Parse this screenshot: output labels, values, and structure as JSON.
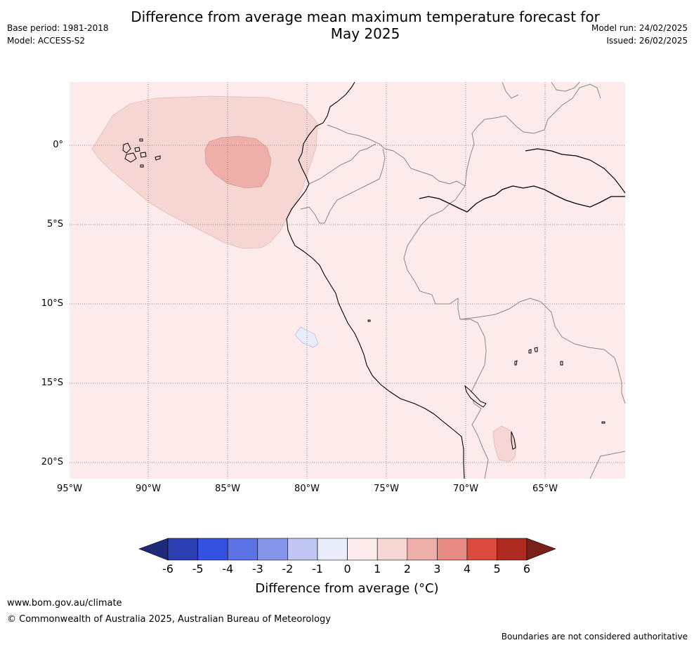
{
  "header": {
    "title_line1": "Difference from average mean maximum temperature forecast for",
    "title_line2": "May 2025",
    "base_period": "Base period: 1981-2018",
    "model": "Model: ACCESS-S2",
    "model_run": "Model run: 24/02/2025",
    "issued": "Issued: 26/02/2025"
  },
  "map": {
    "lat_labels": [
      "0°",
      "5°S",
      "10°S",
      "15°S",
      "20°S"
    ],
    "lon_labels": [
      "95°W",
      "90°W",
      "85°W",
      "80°W",
      "75°W",
      "70°W",
      "65°W"
    ],
    "colors": {
      "anomaly_0_1": "#fcebea",
      "anomaly_1_2": "#f5d6d3",
      "anomaly_2_3": "#eeaea9",
      "anomaly_neg1_0": "#e9ecfb"
    }
  },
  "colorbar": {
    "ticks": [
      "-6",
      "-5",
      "-4",
      "-3",
      "-2",
      "-1",
      "0",
      "1",
      "2",
      "3",
      "4",
      "5",
      "6"
    ],
    "colors": [
      "#1f2a7a",
      "#2b3fb3",
      "#3451e0",
      "#5c73e6",
      "#8595ea",
      "#c0c6f4",
      "#e9ecfb",
      "#fcebea",
      "#f5d6d3",
      "#eeaea9",
      "#e68a82",
      "#db4a3e",
      "#ae2b22",
      "#7a1f1a"
    ],
    "label": "Difference from average (°C)"
  },
  "footer": {
    "url": "www.bom.gov.au/climate",
    "copyright": "© Commonwealth of Australia 2025, Australian Bureau of Meteorology",
    "disclaimer": "Boundaries are not considered authoritative"
  }
}
